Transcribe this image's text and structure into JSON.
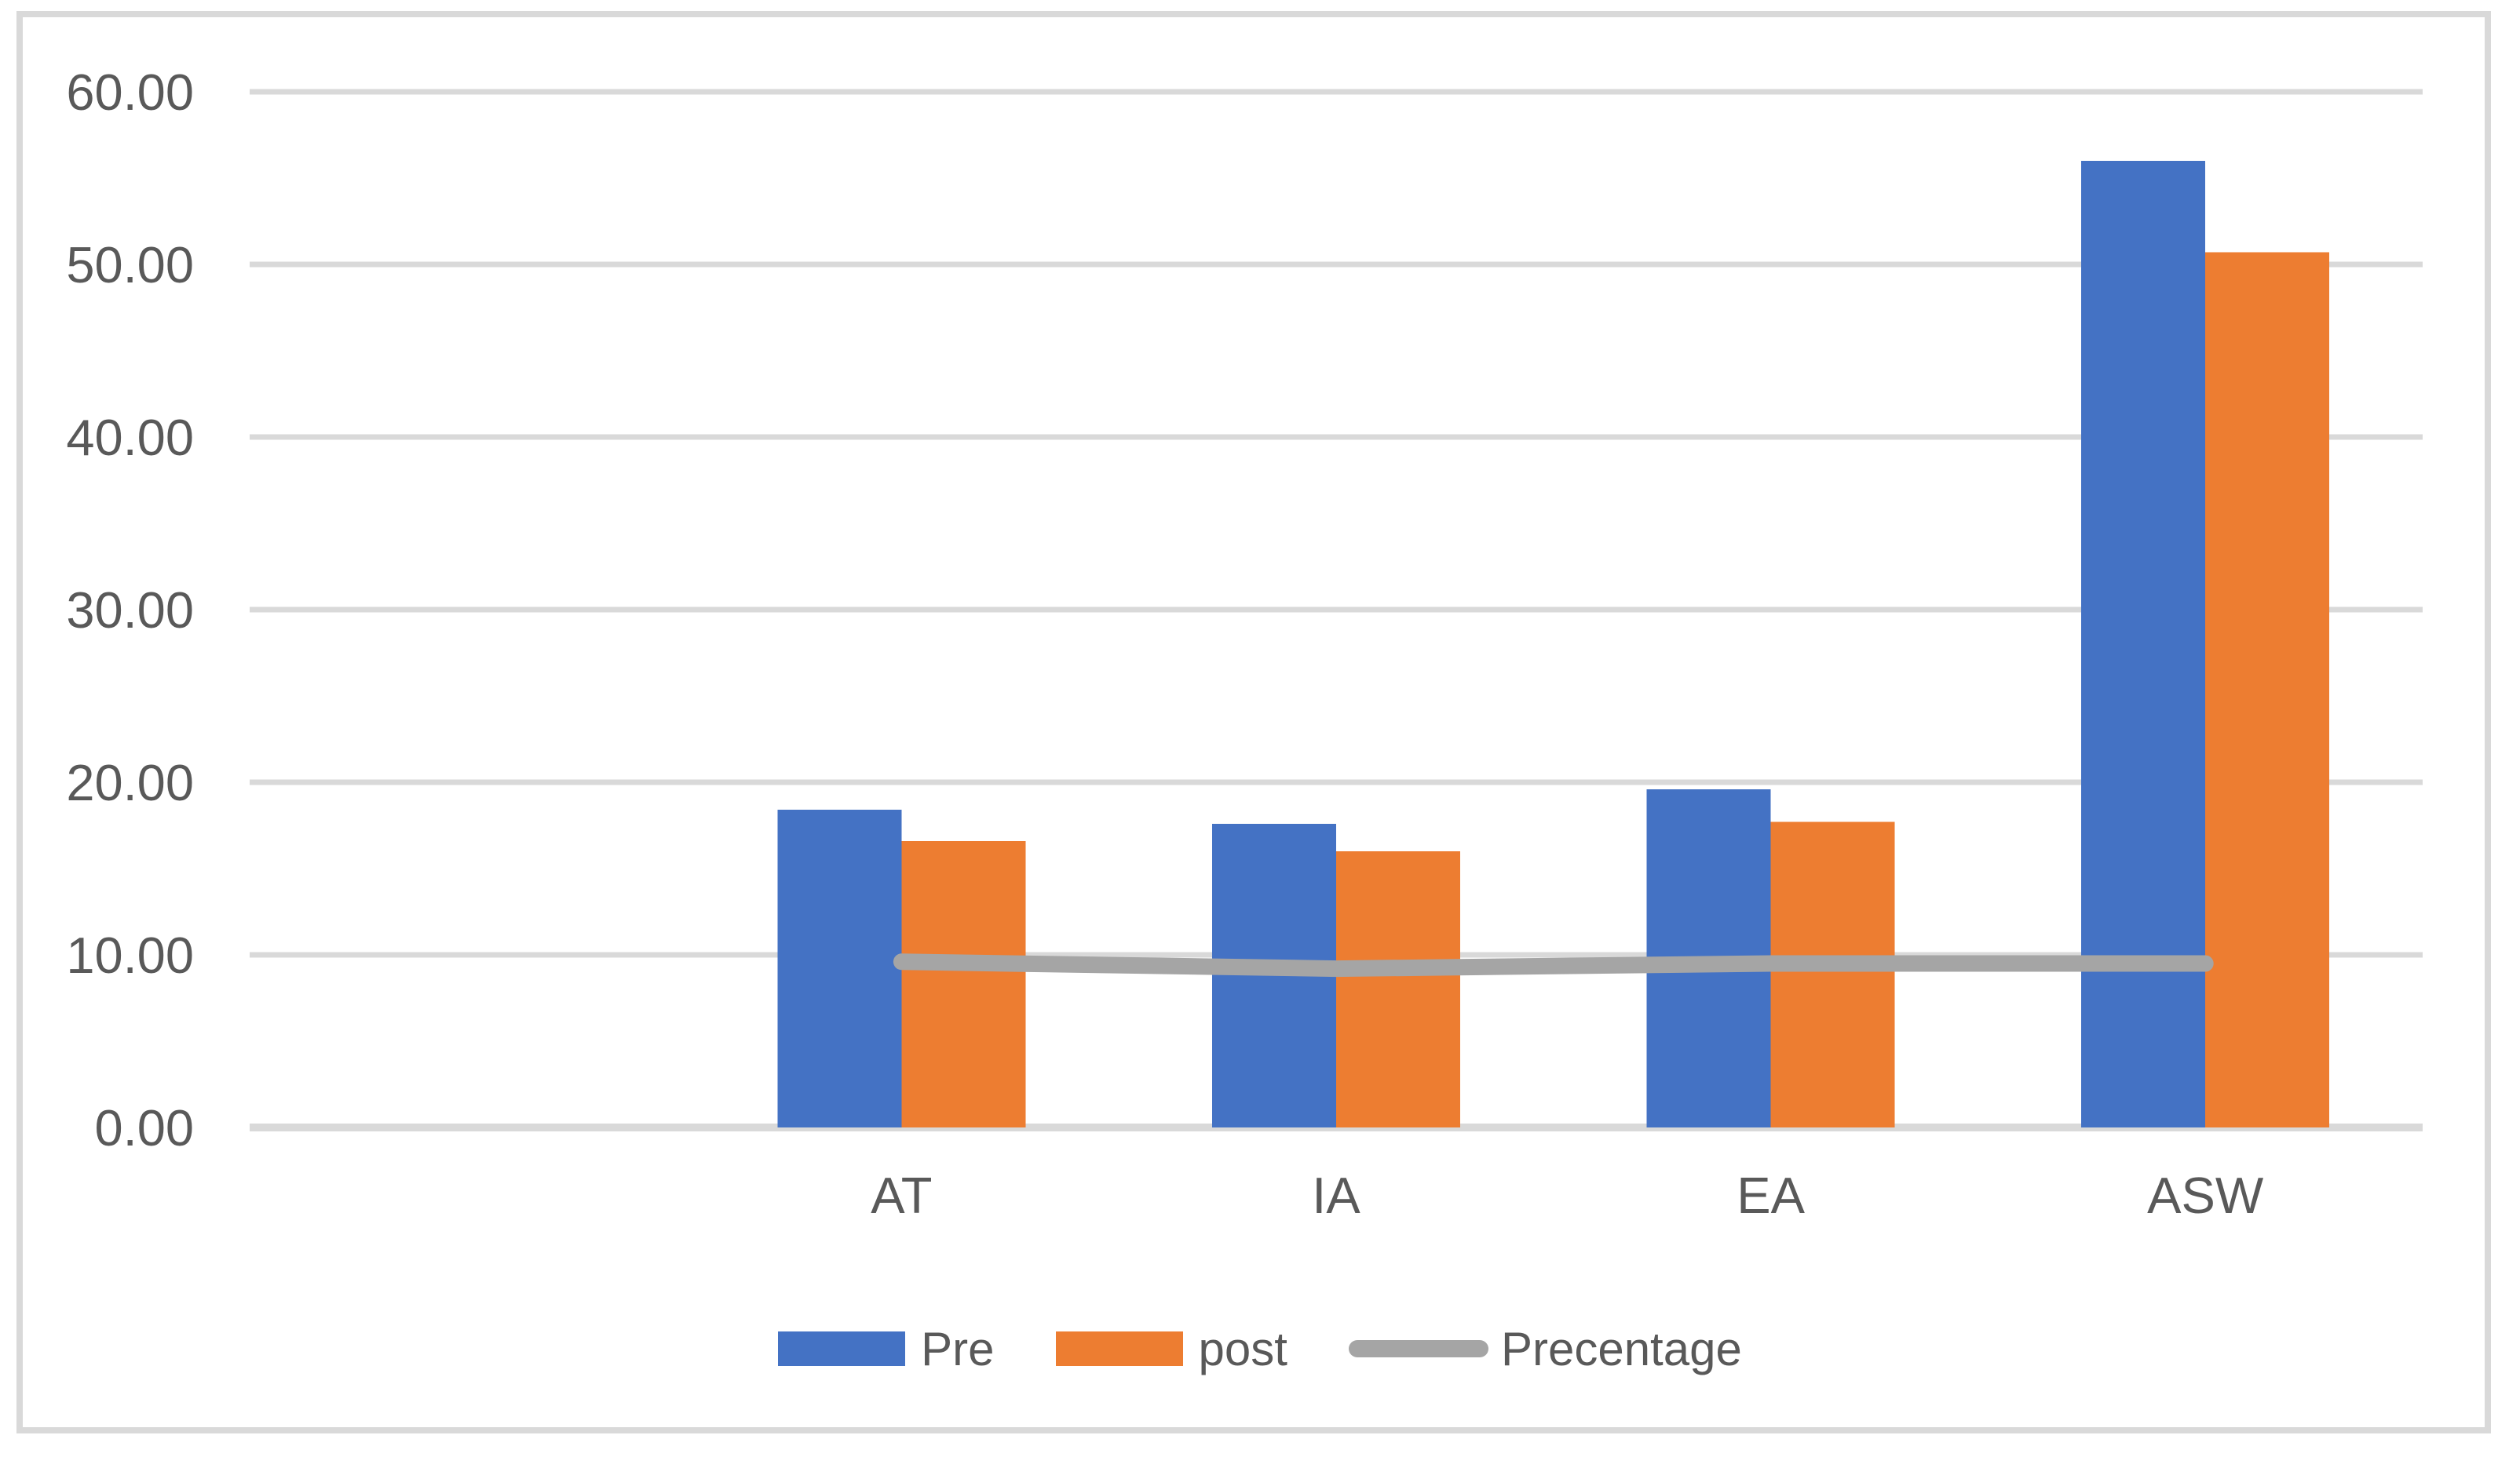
{
  "chart_data": {
    "type": "bar",
    "subtype": "grouped-bars-with-line-overlay",
    "categories": [
      "AT",
      "IA",
      "EA",
      "ASW"
    ],
    "series": [
      {
        "name": "Pre",
        "type": "bar",
        "color": "#4472C4",
        "values": [
          18.4,
          17.6,
          19.6,
          56.0
        ]
      },
      {
        "name": "post",
        "type": "bar",
        "color": "#ED7D31",
        "values": [
          16.6,
          16.0,
          17.7,
          50.7
        ]
      },
      {
        "name": "Precentage",
        "type": "line",
        "color": "#A5A5A5",
        "values": [
          9.6,
          9.2,
          9.5,
          9.5
        ]
      }
    ],
    "y_axis": {
      "min": 0,
      "max": 60,
      "tick_step": 10,
      "tick_labels": [
        "0.00",
        "10.00",
        "20.00",
        "30.00",
        "40.00",
        "50.00",
        "60.00"
      ]
    },
    "x_axis": {
      "leading_blank_slot": true
    },
    "legend": {
      "position": "bottom",
      "entries": [
        "Pre",
        "post",
        "Precentage"
      ]
    },
    "grid": true,
    "colors": {
      "text": "#595959",
      "gridline": "#D9D9D9",
      "baseline": "#D9D9D9",
      "frame_border": "#D9D9D9",
      "background": "#FFFFFF"
    }
  }
}
